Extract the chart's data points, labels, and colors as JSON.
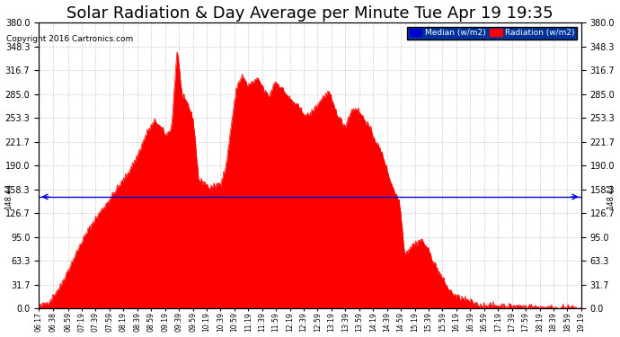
{
  "title": "Solar Radiation & Day Average per Minute Tue Apr 19 19:35",
  "copyright": "Copyright 2016 Cartronics.com",
  "median_value": 148.44,
  "y_max": 380.0,
  "y_min": 0.0,
  "yticks": [
    0.0,
    31.7,
    63.3,
    95.0,
    126.7,
    158.3,
    190.0,
    221.7,
    253.3,
    285.0,
    316.7,
    348.3,
    380.0
  ],
  "background_color": "#ffffff",
  "fill_color": "#ff0000",
  "median_line_color": "#0000cc",
  "grid_color": "#cccccc",
  "title_color": "#000000",
  "title_fontsize": 13,
  "x_tick_labels": [
    "06:17",
    "06:38",
    "06:59",
    "07:19",
    "07:39",
    "07:59",
    "08:19",
    "08:39",
    "08:59",
    "09:19",
    "09:39",
    "09:59",
    "10:19",
    "10:39",
    "10:59",
    "11:19",
    "11:39",
    "11:59",
    "12:19",
    "12:39",
    "12:59",
    "13:19",
    "13:39",
    "13:59",
    "14:19",
    "14:39",
    "14:59",
    "15:19",
    "15:39",
    "15:59",
    "16:19",
    "16:39",
    "16:59",
    "17:19",
    "17:39",
    "17:59",
    "18:19",
    "18:39",
    "18:59",
    "19:19"
  ],
  "legend_median_color": "#0000cc",
  "legend_radiation_color": "#ff0000",
  "legend_bg_color": "#003399",
  "key_t": [
    0.0,
    0.02,
    0.04,
    0.06,
    0.08,
    0.1,
    0.12,
    0.14,
    0.16,
    0.18,
    0.2,
    0.215,
    0.225,
    0.235,
    0.245,
    0.255,
    0.265,
    0.275,
    0.285,
    0.295,
    0.305,
    0.315,
    0.325,
    0.335,
    0.345,
    0.355,
    0.365,
    0.375,
    0.385,
    0.395,
    0.405,
    0.415,
    0.425,
    0.435,
    0.445,
    0.455,
    0.465,
    0.475,
    0.485,
    0.495,
    0.505,
    0.515,
    0.525,
    0.535,
    0.545,
    0.555,
    0.565,
    0.575,
    0.585,
    0.595,
    0.605,
    0.615,
    0.625,
    0.635,
    0.645,
    0.655,
    0.665,
    0.675,
    0.685,
    0.695,
    0.705,
    0.715,
    0.725,
    0.735,
    0.745,
    0.755,
    0.77,
    0.79,
    0.8,
    0.81,
    1.0
  ],
  "key_v": [
    2,
    10,
    30,
    60,
    90,
    115,
    135,
    155,
    175,
    200,
    235,
    250,
    240,
    230,
    242,
    345,
    280,
    272,
    250,
    170,
    168,
    160,
    163,
    167,
    188,
    245,
    295,
    310,
    296,
    301,
    305,
    290,
    282,
    302,
    296,
    286,
    277,
    271,
    262,
    256,
    262,
    272,
    282,
    287,
    267,
    252,
    242,
    262,
    267,
    257,
    247,
    232,
    217,
    202,
    177,
    157,
    142,
    72,
    82,
    87,
    92,
    82,
    67,
    52,
    39,
    26,
    16,
    11,
    8,
    5,
    0
  ]
}
